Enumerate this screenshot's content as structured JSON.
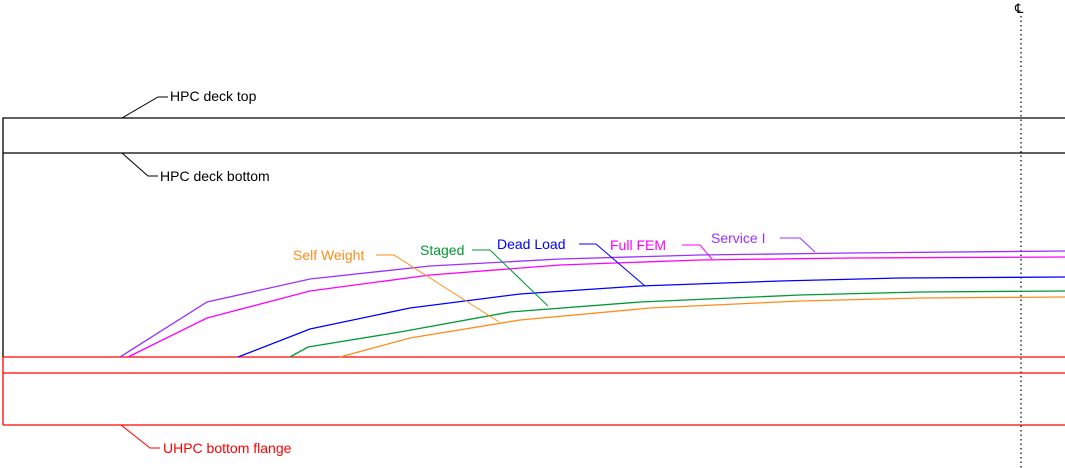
{
  "colors": {
    "deck": "#000000",
    "flange": "#ff0000",
    "service": "#9b30ff",
    "fem": "#ff00ff",
    "dead": "#0000ff",
    "staged": "#009933",
    "self": "#ff8c1a",
    "centerline": "#000000"
  },
  "labels": {
    "deck_top": "HPC deck top",
    "deck_bottom": "HPC deck bottom",
    "flange": "UHPC bottom flange",
    "centerline": "℄"
  },
  "curves": {
    "service": "Service I",
    "fem": "Full FEM",
    "dead": "Dead Load",
    "staged": "Staged",
    "self": "Self Weight"
  }
}
